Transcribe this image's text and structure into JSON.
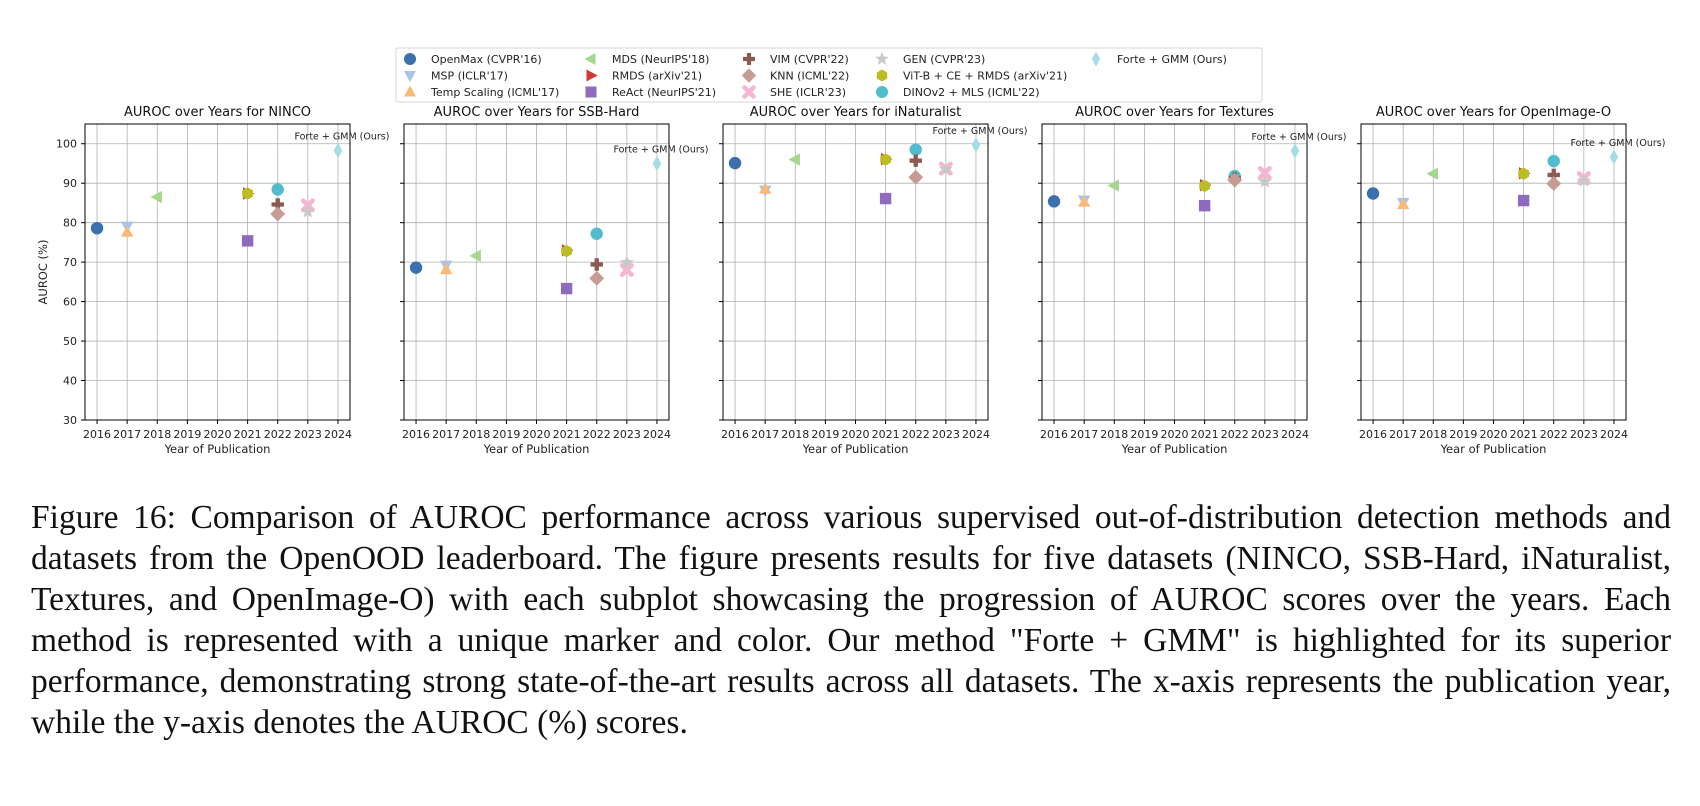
{
  "figure": {
    "legend": [
      {
        "key": "openmax",
        "label": "OpenMax (CVPR'16)",
        "marker": "circle",
        "color": "#3a70ad"
      },
      {
        "key": "msp",
        "label": "MSP (ICLR'17)",
        "marker": "triangle-down",
        "color": "#a9c4e6"
      },
      {
        "key": "temp",
        "label": "Temp Scaling (ICML'17)",
        "marker": "triangle-up",
        "color": "#f7bb77"
      },
      {
        "key": "mds",
        "label": "MDS (NeurIPS'18)",
        "marker": "triangle-left",
        "color": "#a5d88e"
      },
      {
        "key": "rmds",
        "label": "RMDS (arXiv'21)",
        "marker": "triangle-right",
        "color": "#d23a35"
      },
      {
        "key": "react",
        "label": "ReAct (NeurIPS'21)",
        "marker": "square",
        "color": "#8e6bbf"
      },
      {
        "key": "vim",
        "label": "VIM (CVPR'22)",
        "marker": "plus",
        "color": "#8b5a50"
      },
      {
        "key": "knn",
        "label": "KNN (ICML'22)",
        "marker": "diamond",
        "color": "#c69c94"
      },
      {
        "key": "she",
        "label": "SHE (ICLR'23)",
        "marker": "x",
        "color": "#f5b6d2"
      },
      {
        "key": "gen",
        "label": "GEN (CVPR'23)",
        "marker": "star",
        "color": "#c8c8c8"
      },
      {
        "key": "vitb",
        "label": "ViT-B + CE + RMDS (arXiv'21)",
        "marker": "hexagon",
        "color": "#bcbd22"
      },
      {
        "key": "dinov2",
        "label": "DINOv2 + MLS (ICML'22)",
        "marker": "circle",
        "color": "#52bccf"
      },
      {
        "key": "forte",
        "label": "Forte + GMM (Ours)",
        "marker": "thin-diamond",
        "color": "#a6dde5"
      }
    ],
    "caption": "Figure 16: Comparison of AUROC performance across various supervised out-of-distribution detection methods and datasets from the OpenOOD leaderboard. The figure presents results for five datasets (NINCO, SSB-Hard, iNaturalist, Textures, and OpenImage-O) with each subplot showcasing the progression of AUROC scores over the years. Each method is represented with a unique marker and color. Our method \"Forte + GMM\" is highlighted for its superior performance, demonstrating strong state-of-the-art results across all datasets. The x-axis represents the publication year, while the y-axis denotes the AUROC (%) scores."
  },
  "chart_data": [
    {
      "type": "scatter",
      "title": "AUROC over Years for NINCO",
      "xlabel": "Year of Publication",
      "ylabel": "AUROC (%)",
      "xlim": [
        2015.6,
        2024.4
      ],
      "ylim": [
        30,
        105
      ],
      "xticks": [
        2016,
        2017,
        2018,
        2019,
        2020,
        2021,
        2022,
        2023,
        2024
      ],
      "yticks": [
        30,
        40,
        50,
        60,
        70,
        80,
        90,
        100
      ],
      "grid": true,
      "annotation": {
        "text": "Forte + GMM (Ours)"
      },
      "points": [
        {
          "method": "openmax",
          "x": 2016,
          "y": 78.6
        },
        {
          "method": "msp",
          "x": 2017,
          "y": 79.1
        },
        {
          "method": "temp",
          "x": 2017,
          "y": 77.6
        },
        {
          "method": "mds",
          "x": 2018,
          "y": 86.5
        },
        {
          "method": "rmds",
          "x": 2021,
          "y": 87.4
        },
        {
          "method": "vitb",
          "x": 2021,
          "y": 87.4
        },
        {
          "method": "react",
          "x": 2021,
          "y": 75.4
        },
        {
          "method": "dinov2",
          "x": 2022,
          "y": 88.4
        },
        {
          "method": "vim",
          "x": 2022,
          "y": 84.6
        },
        {
          "method": "knn",
          "x": 2022,
          "y": 82.2
        },
        {
          "method": "she",
          "x": 2023,
          "y": 84.4
        },
        {
          "method": "gen",
          "x": 2023,
          "y": 82.8
        },
        {
          "method": "forte",
          "x": 2024,
          "y": 98.3
        }
      ]
    },
    {
      "type": "scatter",
      "title": "AUROC over Years for SSB-Hard",
      "xlabel": "Year of Publication",
      "ylabel": "",
      "xlim": [
        2015.6,
        2024.4
      ],
      "ylim": [
        30,
        105
      ],
      "xticks": [
        2016,
        2017,
        2018,
        2019,
        2020,
        2021,
        2022,
        2023,
        2024
      ],
      "yticks": [
        30,
        40,
        50,
        60,
        70,
        80,
        90,
        100
      ],
      "grid": true,
      "annotation": {
        "text": "Forte + GMM (Ours)"
      },
      "points": [
        {
          "method": "openmax",
          "x": 2016,
          "y": 68.6
        },
        {
          "method": "msp",
          "x": 2017,
          "y": 69.2
        },
        {
          "method": "temp",
          "x": 2017,
          "y": 68.1
        },
        {
          "method": "mds",
          "x": 2018,
          "y": 71.6
        },
        {
          "method": "rmds",
          "x": 2021,
          "y": 73.0
        },
        {
          "method": "vitb",
          "x": 2021,
          "y": 72.8
        },
        {
          "method": "react",
          "x": 2021,
          "y": 63.3
        },
        {
          "method": "dinov2",
          "x": 2022,
          "y": 77.2
        },
        {
          "method": "vim",
          "x": 2022,
          "y": 69.4
        },
        {
          "method": "knn",
          "x": 2022,
          "y": 65.9
        },
        {
          "method": "she",
          "x": 2023,
          "y": 68.0
        },
        {
          "method": "gen",
          "x": 2023,
          "y": 69.9
        },
        {
          "method": "forte",
          "x": 2024,
          "y": 95.0
        }
      ]
    },
    {
      "type": "scatter",
      "title": "AUROC over Years for iNaturalist",
      "xlabel": "Year of Publication",
      "ylabel": "",
      "xlim": [
        2015.6,
        2024.4
      ],
      "ylim": [
        30,
        105
      ],
      "xticks": [
        2016,
        2017,
        2018,
        2019,
        2020,
        2021,
        2022,
        2023,
        2024
      ],
      "yticks": [
        30,
        40,
        50,
        60,
        70,
        80,
        90,
        100
      ],
      "grid": true,
      "annotation": {
        "text": "Forte + GMM (Ours)"
      },
      "points": [
        {
          "method": "openmax",
          "x": 2016,
          "y": 95.1
        },
        {
          "method": "msp",
          "x": 2017,
          "y": 88.2
        },
        {
          "method": "temp",
          "x": 2017,
          "y": 88.5
        },
        {
          "method": "mds",
          "x": 2018,
          "y": 96.0
        },
        {
          "method": "rmds",
          "x": 2021,
          "y": 96.1
        },
        {
          "method": "vitb",
          "x": 2021,
          "y": 96.0
        },
        {
          "method": "react",
          "x": 2021,
          "y": 86.1
        },
        {
          "method": "dinov2",
          "x": 2022,
          "y": 98.5
        },
        {
          "method": "vim",
          "x": 2022,
          "y": 95.7
        },
        {
          "method": "knn",
          "x": 2022,
          "y": 91.5
        },
        {
          "method": "she",
          "x": 2023,
          "y": 93.7
        },
        {
          "method": "gen",
          "x": 2023,
          "y": 93.5
        },
        {
          "method": "forte",
          "x": 2024,
          "y": 99.7
        }
      ]
    },
    {
      "type": "scatter",
      "title": "AUROC over Years for Textures",
      "xlabel": "Year of Publication",
      "ylabel": "",
      "xlim": [
        2015.6,
        2024.4
      ],
      "ylim": [
        30,
        105
      ],
      "xticks": [
        2016,
        2017,
        2018,
        2019,
        2020,
        2021,
        2022,
        2023,
        2024
      ],
      "yticks": [
        30,
        40,
        50,
        60,
        70,
        80,
        90,
        100
      ],
      "grid": true,
      "annotation": {
        "text": "Forte + GMM (Ours)"
      },
      "points": [
        {
          "method": "openmax",
          "x": 2016,
          "y": 85.4
        },
        {
          "method": "msp",
          "x": 2017,
          "y": 85.7
        },
        {
          "method": "temp",
          "x": 2017,
          "y": 85.2
        },
        {
          "method": "mds",
          "x": 2018,
          "y": 89.4
        },
        {
          "method": "rmds",
          "x": 2021,
          "y": 89.5
        },
        {
          "method": "vitb",
          "x": 2021,
          "y": 89.3
        },
        {
          "method": "react",
          "x": 2021,
          "y": 84.3
        },
        {
          "method": "dinov2",
          "x": 2022,
          "y": 91.8
        },
        {
          "method": "vim",
          "x": 2022,
          "y": 91.2
        },
        {
          "method": "knn",
          "x": 2022,
          "y": 90.8
        },
        {
          "method": "she",
          "x": 2023,
          "y": 92.6
        },
        {
          "method": "gen",
          "x": 2023,
          "y": 90.4
        },
        {
          "method": "forte",
          "x": 2024,
          "y": 98.2
        }
      ]
    },
    {
      "type": "scatter",
      "title": "AUROC over Years for OpenImage-O",
      "xlabel": "Year of Publication",
      "ylabel": "",
      "xlim": [
        2015.6,
        2024.4
      ],
      "ylim": [
        30,
        105
      ],
      "xticks": [
        2016,
        2017,
        2018,
        2019,
        2020,
        2021,
        2022,
        2023,
        2024
      ],
      "yticks": [
        30,
        40,
        50,
        60,
        70,
        80,
        90,
        100
      ],
      "grid": true,
      "annotation": {
        "text": "Forte + GMM (Ours)"
      },
      "points": [
        {
          "method": "openmax",
          "x": 2016,
          "y": 87.4
        },
        {
          "method": "msp",
          "x": 2017,
          "y": 85.1
        },
        {
          "method": "temp",
          "x": 2017,
          "y": 84.6
        },
        {
          "method": "mds",
          "x": 2018,
          "y": 92.4
        },
        {
          "method": "rmds",
          "x": 2021,
          "y": 92.5
        },
        {
          "method": "vitb",
          "x": 2021,
          "y": 92.4
        },
        {
          "method": "react",
          "x": 2021,
          "y": 85.6
        },
        {
          "method": "dinov2",
          "x": 2022,
          "y": 95.6
        },
        {
          "method": "vim",
          "x": 2022,
          "y": 92.1
        },
        {
          "method": "knn",
          "x": 2022,
          "y": 89.9
        },
        {
          "method": "she",
          "x": 2023,
          "y": 91.3
        },
        {
          "method": "gen",
          "x": 2023,
          "y": 90.6
        },
        {
          "method": "forte",
          "x": 2024,
          "y": 96.6
        }
      ]
    }
  ]
}
